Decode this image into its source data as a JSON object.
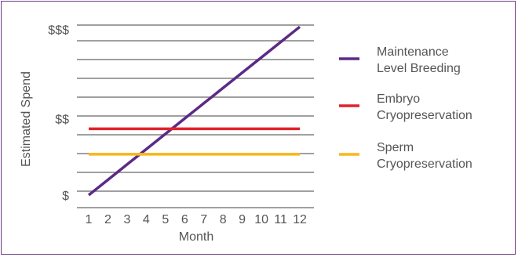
{
  "chart_data": {
    "type": "line",
    "title": "",
    "xlabel": "Month",
    "ylabel": "Estimated Spend",
    "x": [
      1,
      2,
      3,
      4,
      5,
      6,
      7,
      8,
      9,
      10,
      11,
      12
    ],
    "xlim": [
      1,
      12
    ],
    "ylim": [
      0,
      10
    ],
    "y_tick_labels": [
      {
        "value": 0,
        "label": "$"
      },
      {
        "value": 4.5,
        "label": "$$"
      },
      {
        "value": 9.75,
        "label": "$$$"
      }
    ],
    "grid": "horizontal",
    "legend_position": "right",
    "series": [
      {
        "name": "Maintenance Level Breeding",
        "name_lines": [
          "Maintenance",
          "Level Breeding"
        ],
        "color": "#5b2a86",
        "values": [
          0,
          0.9,
          1.8,
          2.7,
          3.6,
          4.5,
          5.4,
          6.3,
          7.2,
          8.1,
          9.0,
          9.9
        ]
      },
      {
        "name": "Embryo Cryopreservation",
        "name_lines": [
          "Embryo",
          "Cryopreservation"
        ],
        "color": "#e0222b",
        "values": [
          3.9,
          3.9,
          3.9,
          3.9,
          3.9,
          3.9,
          3.9,
          3.9,
          3.9,
          3.9,
          3.9,
          3.9
        ]
      },
      {
        "name": "Sperm Cryopreservation",
        "name_lines": [
          "Sperm",
          "Cryopreservation"
        ],
        "color": "#f7b81d",
        "values": [
          2.4,
          2.4,
          2.4,
          2.4,
          2.4,
          2.4,
          2.4,
          2.4,
          2.4,
          2.4,
          2.4,
          2.4
        ]
      }
    ]
  },
  "colors": {
    "frame_border": "#6b3a84",
    "gridline": "#808080",
    "axis_text": "#555555"
  }
}
